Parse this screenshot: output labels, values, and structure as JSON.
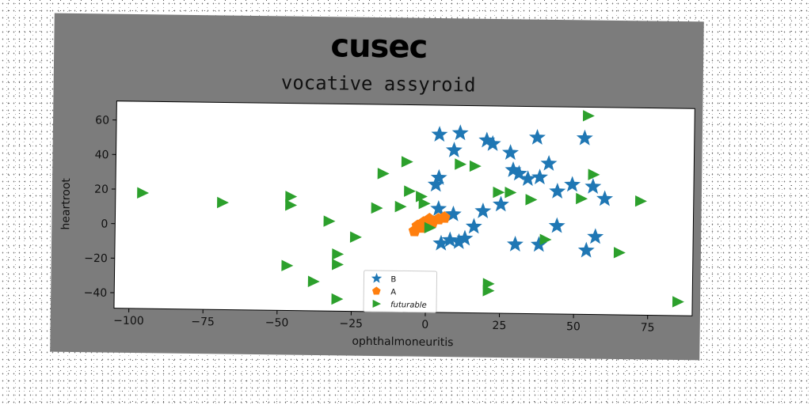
{
  "header": {
    "banner": "cusec"
  },
  "chart_data": {
    "type": "scatter",
    "title": "vocative assyroid",
    "xlabel": "ophthalmoneuritis",
    "ylabel": "heartroot",
    "xlim": [
      -105,
      90
    ],
    "ylim": [
      -49,
      71
    ],
    "xticks": [
      -100,
      -75,
      -50,
      -25,
      0,
      25,
      50,
      75
    ],
    "yticks": [
      -40,
      -20,
      0,
      20,
      40,
      60
    ],
    "grid": false,
    "legend_position": "lower center",
    "series": [
      {
        "name": "B",
        "marker": "star",
        "color": "#1f77b4",
        "points": [
          [
            4,
            54
          ],
          [
            11,
            55
          ],
          [
            9,
            45
          ],
          [
            20,
            51
          ],
          [
            22,
            49
          ],
          [
            28,
            44
          ],
          [
            37,
            53
          ],
          [
            53,
            53
          ],
          [
            4,
            29
          ],
          [
            3,
            25
          ],
          [
            29,
            34
          ],
          [
            31,
            32
          ],
          [
            34,
            29
          ],
          [
            38,
            30
          ],
          [
            41,
            38
          ],
          [
            44,
            22
          ],
          [
            49,
            26
          ],
          [
            56,
            25
          ],
          [
            60,
            18
          ],
          [
            4,
            11
          ],
          [
            9,
            8
          ],
          [
            16,
            1
          ],
          [
            19,
            10
          ],
          [
            25,
            14
          ],
          [
            5,
            -9
          ],
          [
            8,
            -7
          ],
          [
            11,
            -8
          ],
          [
            13,
            -6
          ],
          [
            30,
            -9
          ],
          [
            38,
            -9
          ],
          [
            44,
            2
          ],
          [
            54,
            -12
          ],
          [
            57,
            -4
          ]
        ]
      },
      {
        "name": "A",
        "marker": "pentagon",
        "color": "#ff7f0e",
        "points": [
          [
            -4,
            -2
          ],
          [
            -2,
            0
          ],
          [
            0,
            2
          ],
          [
            2,
            3
          ],
          [
            4,
            5
          ],
          [
            6,
            6
          ],
          [
            -3,
            1
          ],
          [
            -1,
            3
          ],
          [
            1,
            5
          ]
        ]
      },
      {
        "name": "futurable",
        "marker": "triangle-right",
        "color": "#2ca02c",
        "points": [
          [
            -96,
            18
          ],
          [
            -69,
            13
          ],
          [
            -46,
            17
          ],
          [
            -46,
            12
          ],
          [
            -33,
            3
          ],
          [
            -30,
            -16
          ],
          [
            -30,
            -22
          ],
          [
            -47,
            -23
          ],
          [
            -38,
            -32
          ],
          [
            -30,
            -42
          ],
          [
            -24,
            -6
          ],
          [
            -17,
            11
          ],
          [
            -15,
            31
          ],
          [
            -7,
            38
          ],
          [
            -9,
            12
          ],
          [
            -6,
            21
          ],
          [
            -2,
            18
          ],
          [
            -1,
            14
          ],
          [
            1,
            0
          ],
          [
            11,
            37
          ],
          [
            16,
            36
          ],
          [
            24,
            21
          ],
          [
            28,
            21
          ],
          [
            35,
            17
          ],
          [
            52,
            18
          ],
          [
            56,
            32
          ],
          [
            54,
            66
          ],
          [
            72,
            17
          ],
          [
            65,
            -13
          ],
          [
            40,
            -6
          ],
          [
            21,
            -32
          ],
          [
            21,
            -36
          ],
          [
            85,
            -41
          ]
        ]
      }
    ]
  }
}
